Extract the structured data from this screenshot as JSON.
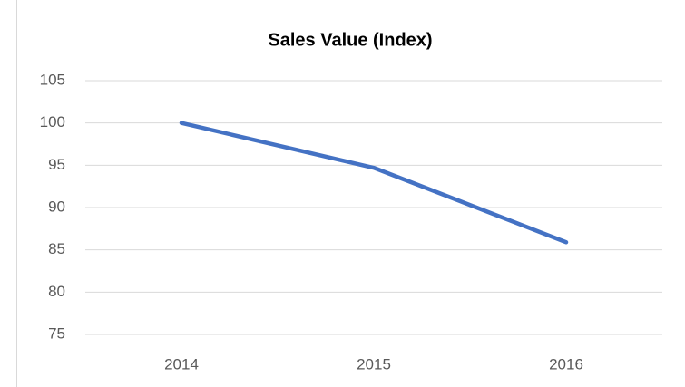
{
  "chart_data": {
    "type": "line",
    "title": "Sales Value (Index)",
    "categories": [
      "2014",
      "2015",
      "2016"
    ],
    "series": [
      {
        "name": "Sales Value (Index)",
        "color": "#4472c4",
        "values": [
          100,
          94.7,
          85.9
        ]
      }
    ],
    "ylim": [
      75,
      105
    ],
    "yticks": [
      75,
      80,
      85,
      90,
      95,
      100,
      105
    ],
    "grid": true
  }
}
